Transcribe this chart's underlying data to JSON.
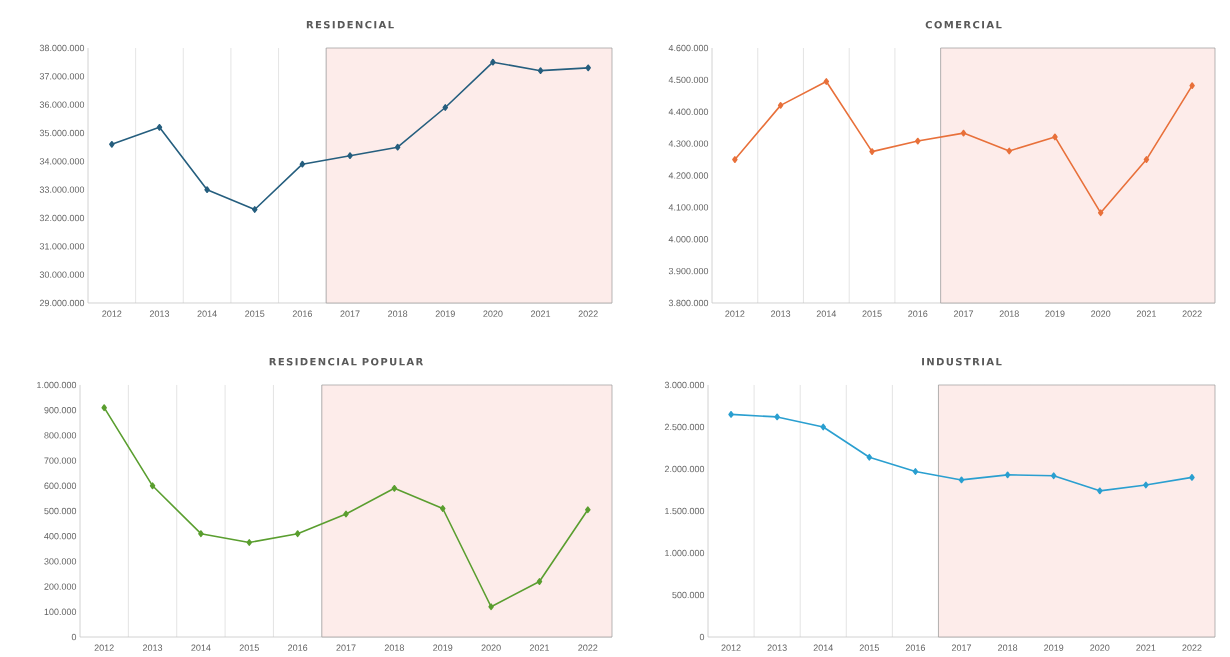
{
  "chart_data": [
    {
      "type": "line",
      "title": "RESIDENCIAL",
      "categories": [
        "2012",
        "2013",
        "2014",
        "2015",
        "2016",
        "2017",
        "2018",
        "2019",
        "2020",
        "2021",
        "2022"
      ],
      "series": [
        {
          "color": "#255e7e",
          "values": [
            34600000,
            35200000,
            33000000,
            32300000,
            33900000,
            34200000,
            34500000,
            35900000,
            37500000,
            37200000,
            37300000
          ]
        }
      ],
      "ylim": [
        29000000,
        38000000
      ],
      "yticks": [
        {
          "value": 29000000,
          "label": "29.000.000"
        },
        {
          "value": 30000000,
          "label": "30.000.000"
        },
        {
          "value": 31000000,
          "label": "31.000.000"
        },
        {
          "value": 32000000,
          "label": "32.000.000"
        },
        {
          "value": 33000000,
          "label": "33.000.000"
        },
        {
          "value": 34000000,
          "label": "34.000.000"
        },
        {
          "value": 35000000,
          "label": "35.000.000"
        },
        {
          "value": 36000000,
          "label": "36.000.000"
        },
        {
          "value": 37000000,
          "label": "37.000.000"
        },
        {
          "value": 38000000,
          "label": "38.000.000"
        }
      ],
      "grid": "x",
      "marker": "diamond",
      "legend": false,
      "bands": [
        {
          "axis": "x",
          "from": "2017",
          "to": "2022",
          "color": "#fdecea"
        }
      ]
    },
    {
      "type": "line",
      "title": "COMERCIAL",
      "categories": [
        "2012",
        "2013",
        "2014",
        "2015",
        "2016",
        "2017",
        "2018",
        "2019",
        "2020",
        "2021",
        "2022"
      ],
      "series": [
        {
          "color": "#e8703a",
          "values": [
            4250000,
            4420000,
            4495000,
            4275000,
            4308000,
            4333000,
            4277000,
            4321000,
            4083000,
            4250000,
            4482000
          ]
        }
      ],
      "ylim": [
        3800000,
        4600000
      ],
      "yticks": [
        {
          "value": 3800000,
          "label": "3.800.000"
        },
        {
          "value": 3900000,
          "label": "3.900.000"
        },
        {
          "value": 4000000,
          "label": "4.000.000"
        },
        {
          "value": 4100000,
          "label": "4.100.000"
        },
        {
          "value": 4200000,
          "label": "4.200.000"
        },
        {
          "value": 4300000,
          "label": "4.300.000"
        },
        {
          "value": 4400000,
          "label": "4.400.000"
        },
        {
          "value": 4500000,
          "label": "4.500.000"
        },
        {
          "value": 4600000,
          "label": "4.600.000"
        }
      ],
      "grid": "x",
      "marker": "diamond",
      "legend": false,
      "bands": [
        {
          "axis": "x",
          "from": "2017",
          "to": "2022",
          "color": "#fdecea"
        }
      ]
    },
    {
      "type": "line",
      "title": "RESIDENCIAL POPULAR",
      "categories": [
        "2012",
        "2013",
        "2014",
        "2015",
        "2016",
        "2017",
        "2018",
        "2019",
        "2020",
        "2021",
        "2022"
      ],
      "series": [
        {
          "color": "#5a9e2f",
          "values": [
            910000,
            600000,
            410000,
            375000,
            410000,
            488000,
            590000,
            510000,
            120000,
            220000,
            505000
          ]
        }
      ],
      "ylim": [
        0,
        1000000
      ],
      "yticks": [
        {
          "value": 0,
          "label": "0"
        },
        {
          "value": 100000,
          "label": "100.000"
        },
        {
          "value": 200000,
          "label": "200.000"
        },
        {
          "value": 300000,
          "label": "300.000"
        },
        {
          "value": 400000,
          "label": "400.000"
        },
        {
          "value": 500000,
          "label": "500.000"
        },
        {
          "value": 600000,
          "label": "600.000"
        },
        {
          "value": 700000,
          "label": "700.000"
        },
        {
          "value": 800000,
          "label": "800.000"
        },
        {
          "value": 900000,
          "label": "900.000"
        },
        {
          "value": 1000000,
          "label": "1.000.000"
        }
      ],
      "grid": "x",
      "marker": "diamond",
      "legend": false,
      "bands": [
        {
          "axis": "x",
          "from": "2017",
          "to": "2022",
          "color": "#fdecea"
        }
      ]
    },
    {
      "type": "line",
      "title": "INDUSTRIAL",
      "categories": [
        "2012",
        "2013",
        "2014",
        "2015",
        "2016",
        "2017",
        "2018",
        "2019",
        "2020",
        "2021",
        "2022"
      ],
      "series": [
        {
          "color": "#2a9fd0",
          "values": [
            2650000,
            2620000,
            2500000,
            2140000,
            1970000,
            1870000,
            1930000,
            1920000,
            1740000,
            1810000,
            1900000
          ]
        }
      ],
      "ylim": [
        0,
        3000000
      ],
      "yticks": [
        {
          "value": 0,
          "label": "0"
        },
        {
          "value": 500000,
          "label": "500.000"
        },
        {
          "value": 1000000,
          "label": "1.000.000"
        },
        {
          "value": 1500000,
          "label": "1.500.000"
        },
        {
          "value": 2000000,
          "label": "2.000.000"
        },
        {
          "value": 2500000,
          "label": "2.500.000"
        },
        {
          "value": 3000000,
          "label": "3.000.000"
        }
      ],
      "grid": "x",
      "marker": "diamond",
      "legend": false,
      "bands": [
        {
          "axis": "x",
          "from": "2017",
          "to": "2022",
          "color": "#fdecea"
        }
      ]
    }
  ]
}
